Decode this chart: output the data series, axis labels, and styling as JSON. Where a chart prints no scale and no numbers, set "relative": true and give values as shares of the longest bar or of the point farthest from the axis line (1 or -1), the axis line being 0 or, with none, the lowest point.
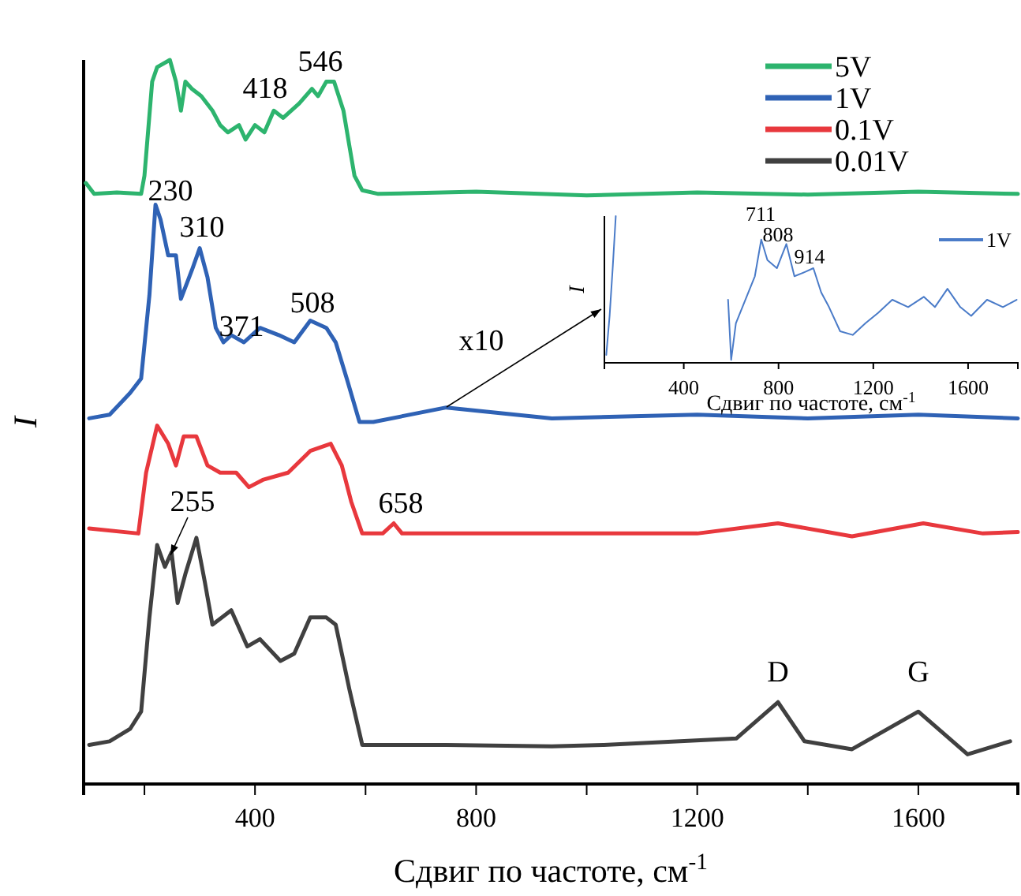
{
  "chart_data": [
    {
      "type": "line",
      "relative": true,
      "xlabel": "Сдвиг по частоте, см$^{-1}$",
      "ylabel": "I",
      "xlim": [
        90,
        1780
      ],
      "xticks": [
        {
          "value": 200,
          "label": null
        },
        400,
        {
          "value": 600,
          "label": null
        },
        800,
        {
          "value": 1000,
          "label": null
        },
        1200,
        {
          "value": 1400,
          "label": null
        },
        1600
      ],
      "legend": "top right",
      "grid": false,
      "tick_labels": "x",
      "line_style": "solid",
      "marker": "none",
      "series": [
        {
          "name": "5V",
          "color": "#2db46e",
          "x": [
            94,
            109,
            150,
            194,
            200,
            214,
            223,
            246,
            257,
            266,
            274,
            286,
            303,
            323,
            337,
            351,
            371,
            383,
            400,
            417,
            434,
            451,
            480,
            503,
            514,
            529,
            543,
            560,
            571,
            580,
            594,
            623,
            800,
            1000,
            1200,
            1400,
            1600,
            1780
          ],
          "values": [
            0.83,
            0.815,
            0.817,
            0.815,
            0.84,
            0.97,
            0.99,
            1.0,
            0.97,
            0.93,
            0.97,
            0.96,
            0.95,
            0.93,
            0.91,
            0.9,
            0.91,
            0.89,
            0.91,
            0.9,
            0.93,
            0.92,
            0.94,
            0.96,
            0.95,
            0.97,
            0.97,
            0.93,
            0.88,
            0.84,
            0.82,
            0.815,
            0.818,
            0.813,
            0.817,
            0.814,
            0.818,
            0.815
          ]
        },
        {
          "name": "1V",
          "color": "#2f62b5",
          "x": [
            100,
            137,
            174,
            194,
            209,
            220,
            229,
            243,
            257,
            266,
            286,
            300,
            314,
            329,
            343,
            357,
            380,
            409,
            443,
            471,
            500,
            529,
            546,
            566,
            589,
            614,
            746,
            937,
            1200,
            1400,
            1600,
            1780
          ],
          "values": [
            0.505,
            0.51,
            0.54,
            0.56,
            0.675,
            0.8,
            0.78,
            0.73,
            0.73,
            0.67,
            0.71,
            0.74,
            0.7,
            0.63,
            0.61,
            0.62,
            0.61,
            0.63,
            0.62,
            0.61,
            0.64,
            0.63,
            0.61,
            0.56,
            0.5,
            0.5,
            0.52,
            0.505,
            0.51,
            0.505,
            0.51,
            0.505
          ]
        },
        {
          "name": "0.1V",
          "color": "#e8383d",
          "x": [
            100,
            189,
            203,
            223,
            243,
            257,
            271,
            294,
            314,
            337,
            366,
            389,
            414,
            460,
            500,
            537,
            557,
            574,
            594,
            631,
            651,
            666,
            937,
            1200,
            1346,
            1480,
            1609,
            1717,
            1780
          ],
          "values": [
            0.353,
            0.346,
            0.43,
            0.495,
            0.47,
            0.44,
            0.48,
            0.48,
            0.44,
            0.43,
            0.43,
            0.41,
            0.42,
            0.43,
            0.46,
            0.47,
            0.44,
            0.39,
            0.346,
            0.346,
            0.36,
            0.346,
            0.346,
            0.346,
            0.36,
            0.342,
            0.36,
            0.346,
            0.348
          ]
        },
        {
          "name": "0.01V",
          "color": "#404040",
          "x": [
            100,
            137,
            174,
            194,
            209,
            223,
            237,
            249,
            260,
            274,
            294,
            309,
            323,
            357,
            386,
            409,
            446,
            471,
            500,
            529,
            546,
            571,
            594,
            746,
            937,
            1031,
            1271,
            1346,
            1394,
            1480,
            1600,
            1689,
            1766
          ],
          "values": [
            0.054,
            0.059,
            0.076,
            0.1,
            0.23,
            0.33,
            0.3,
            0.32,
            0.25,
            0.29,
            0.34,
            0.28,
            0.22,
            0.24,
            0.19,
            0.2,
            0.17,
            0.18,
            0.23,
            0.23,
            0.22,
            0.13,
            0.054,
            0.054,
            0.052,
            0.054,
            0.063,
            0.113,
            0.059,
            0.048,
            0.1,
            0.041,
            0.059
          ]
        }
      ],
      "annotations": [
        "546",
        "418",
        "230",
        "310",
        "371",
        "508",
        "255",
        "658",
        "D",
        "G",
        "x10"
      ]
    },
    {
      "type": "line",
      "relative": true,
      "xlabel": "Сдвиг по частоте, см$^{-1}$",
      "ylabel": "I",
      "xlim": [
        65,
        1810
      ],
      "xticks": [
        400,
        800,
        1200,
        1600
      ],
      "legend": "top right",
      "grid": false,
      "tick_labels": "x",
      "line_style": "solid",
      "marker": "none",
      "series": [
        {
          "name": "1V",
          "color": "#4a7bc8",
          "x": [
            73,
            87,
            100,
            113,
            573,
            587,
            600,
            620,
            660,
            700,
            727,
            753,
            793,
            833,
            867,
            913,
            947,
            980,
            1013,
            1060,
            1113,
            1167,
            1220,
            1280,
            1347,
            1413,
            1460,
            1513,
            1567,
            1613,
            1680,
            1747,
            1805
          ],
          "values": [
            0.054,
            0.32,
            0.645,
            1,
            null,
            0.43,
            0.02,
            0.27,
            0.43,
            0.59,
            0.84,
            0.7,
            0.645,
            0.81,
            0.59,
            0.62,
            0.645,
            0.48,
            0.38,
            0.215,
            0.19,
            0.27,
            0.34,
            0.43,
            0.38,
            0.45,
            0.38,
            0.505,
            0.38,
            0.32,
            0.43,
            0.38,
            0.43
          ]
        }
      ],
      "annotations": [
        "711",
        "808",
        "914"
      ]
    }
  ]
}
